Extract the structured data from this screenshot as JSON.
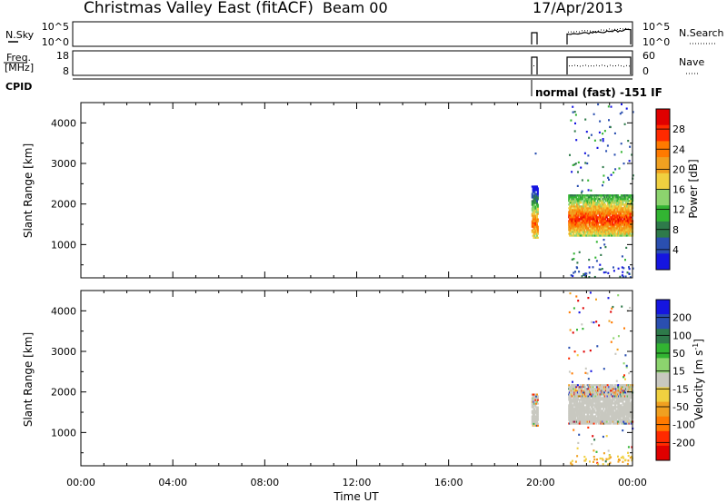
{
  "header": {
    "title": "Christmas Valley East (fitACF)",
    "beam": "Beam 00",
    "date": "17/Apr/2013"
  },
  "top_panels": {
    "nsky_label": "N.Sky",
    "nsky_ticks": [
      "10^5",
      "10^0"
    ],
    "nsearch_label": "N.Search",
    "nsearch_ticks": [
      "10^5",
      "10^0"
    ],
    "freq_label_1": "Freq.",
    "freq_label_2": "[MHz]",
    "freq_ticks": [
      "18",
      "8"
    ],
    "nave_label": "Nave",
    "nave_ticks": [
      "60",
      "0"
    ],
    "cpid_label": "CPID",
    "cpid_text": "normal (fast) -151 IF"
  },
  "colorbars": {
    "power": {
      "label": "Power [dB]",
      "ticks": [
        "28",
        "24",
        "20",
        "16",
        "12",
        "8",
        "4"
      ],
      "colors": [
        "#1515e0",
        "#2a4fb0",
        "#2e7a4a",
        "#32b432",
        "#8cd46e",
        "#f0d040",
        "#f0a020",
        "#ff7a00",
        "#ff2a00",
        "#e00000"
      ]
    },
    "velocity": {
      "label": "Velocity [m s",
      "label_sup": "-1",
      "label_end": "]",
      "ticks": [
        "200",
        "100",
        "50",
        "15",
        "-15",
        "-50",
        "-100",
        "-200"
      ],
      "colors": [
        "#1515e0",
        "#2a4fb0",
        "#2e7a4a",
        "#32b432",
        "#8cd46e",
        "#c8c8c0",
        "#f0d040",
        "#f0a020",
        "#ff7a00",
        "#ff2a00",
        "#e00000"
      ]
    }
  },
  "chart_data": [
    {
      "type": "heatmap",
      "title": "Power",
      "xlabel": "",
      "ylabel": "Slant Range [km]",
      "x_ticks": [
        "00:00",
        "04:00",
        "08:00",
        "12:00",
        "16:00",
        "20:00",
        "00:00"
      ],
      "y_ticks": [
        1000,
        2000,
        3000,
        4000
      ],
      "xlim_hours": [
        0,
        24
      ],
      "ylim_km": [
        180,
        4500
      ],
      "series": [
        {
          "t_start": 19.6,
          "t_end": 19.85,
          "range_min": 1150,
          "range_max": 2450,
          "peak_km": 1500,
          "peak_db": 24
        },
        {
          "t_start": 21.2,
          "t_end": 24.0,
          "range_min": 1200,
          "range_max": 2200,
          "peak_km": 1600,
          "peak_db": 26
        }
      ]
    },
    {
      "type": "heatmap",
      "title": "Velocity",
      "xlabel": "Time UT",
      "ylabel": "Slant Range [km]",
      "x_ticks": [
        "00:00",
        "04:00",
        "08:00",
        "12:00",
        "16:00",
        "20:00",
        "00:00"
      ],
      "y_ticks": [
        1000,
        2000,
        3000,
        4000
      ],
      "xlim_hours": [
        0,
        24
      ],
      "ylim_km": [
        180,
        4500
      ],
      "series": [
        {
          "t_start": 19.6,
          "t_end": 19.85,
          "range_min": 1150,
          "range_max": 1950,
          "typical_velocity": 0
        },
        {
          "t_start": 21.2,
          "t_end": 24.0,
          "range_min": 1200,
          "range_max": 2150,
          "typical_velocity": 0
        }
      ]
    }
  ]
}
